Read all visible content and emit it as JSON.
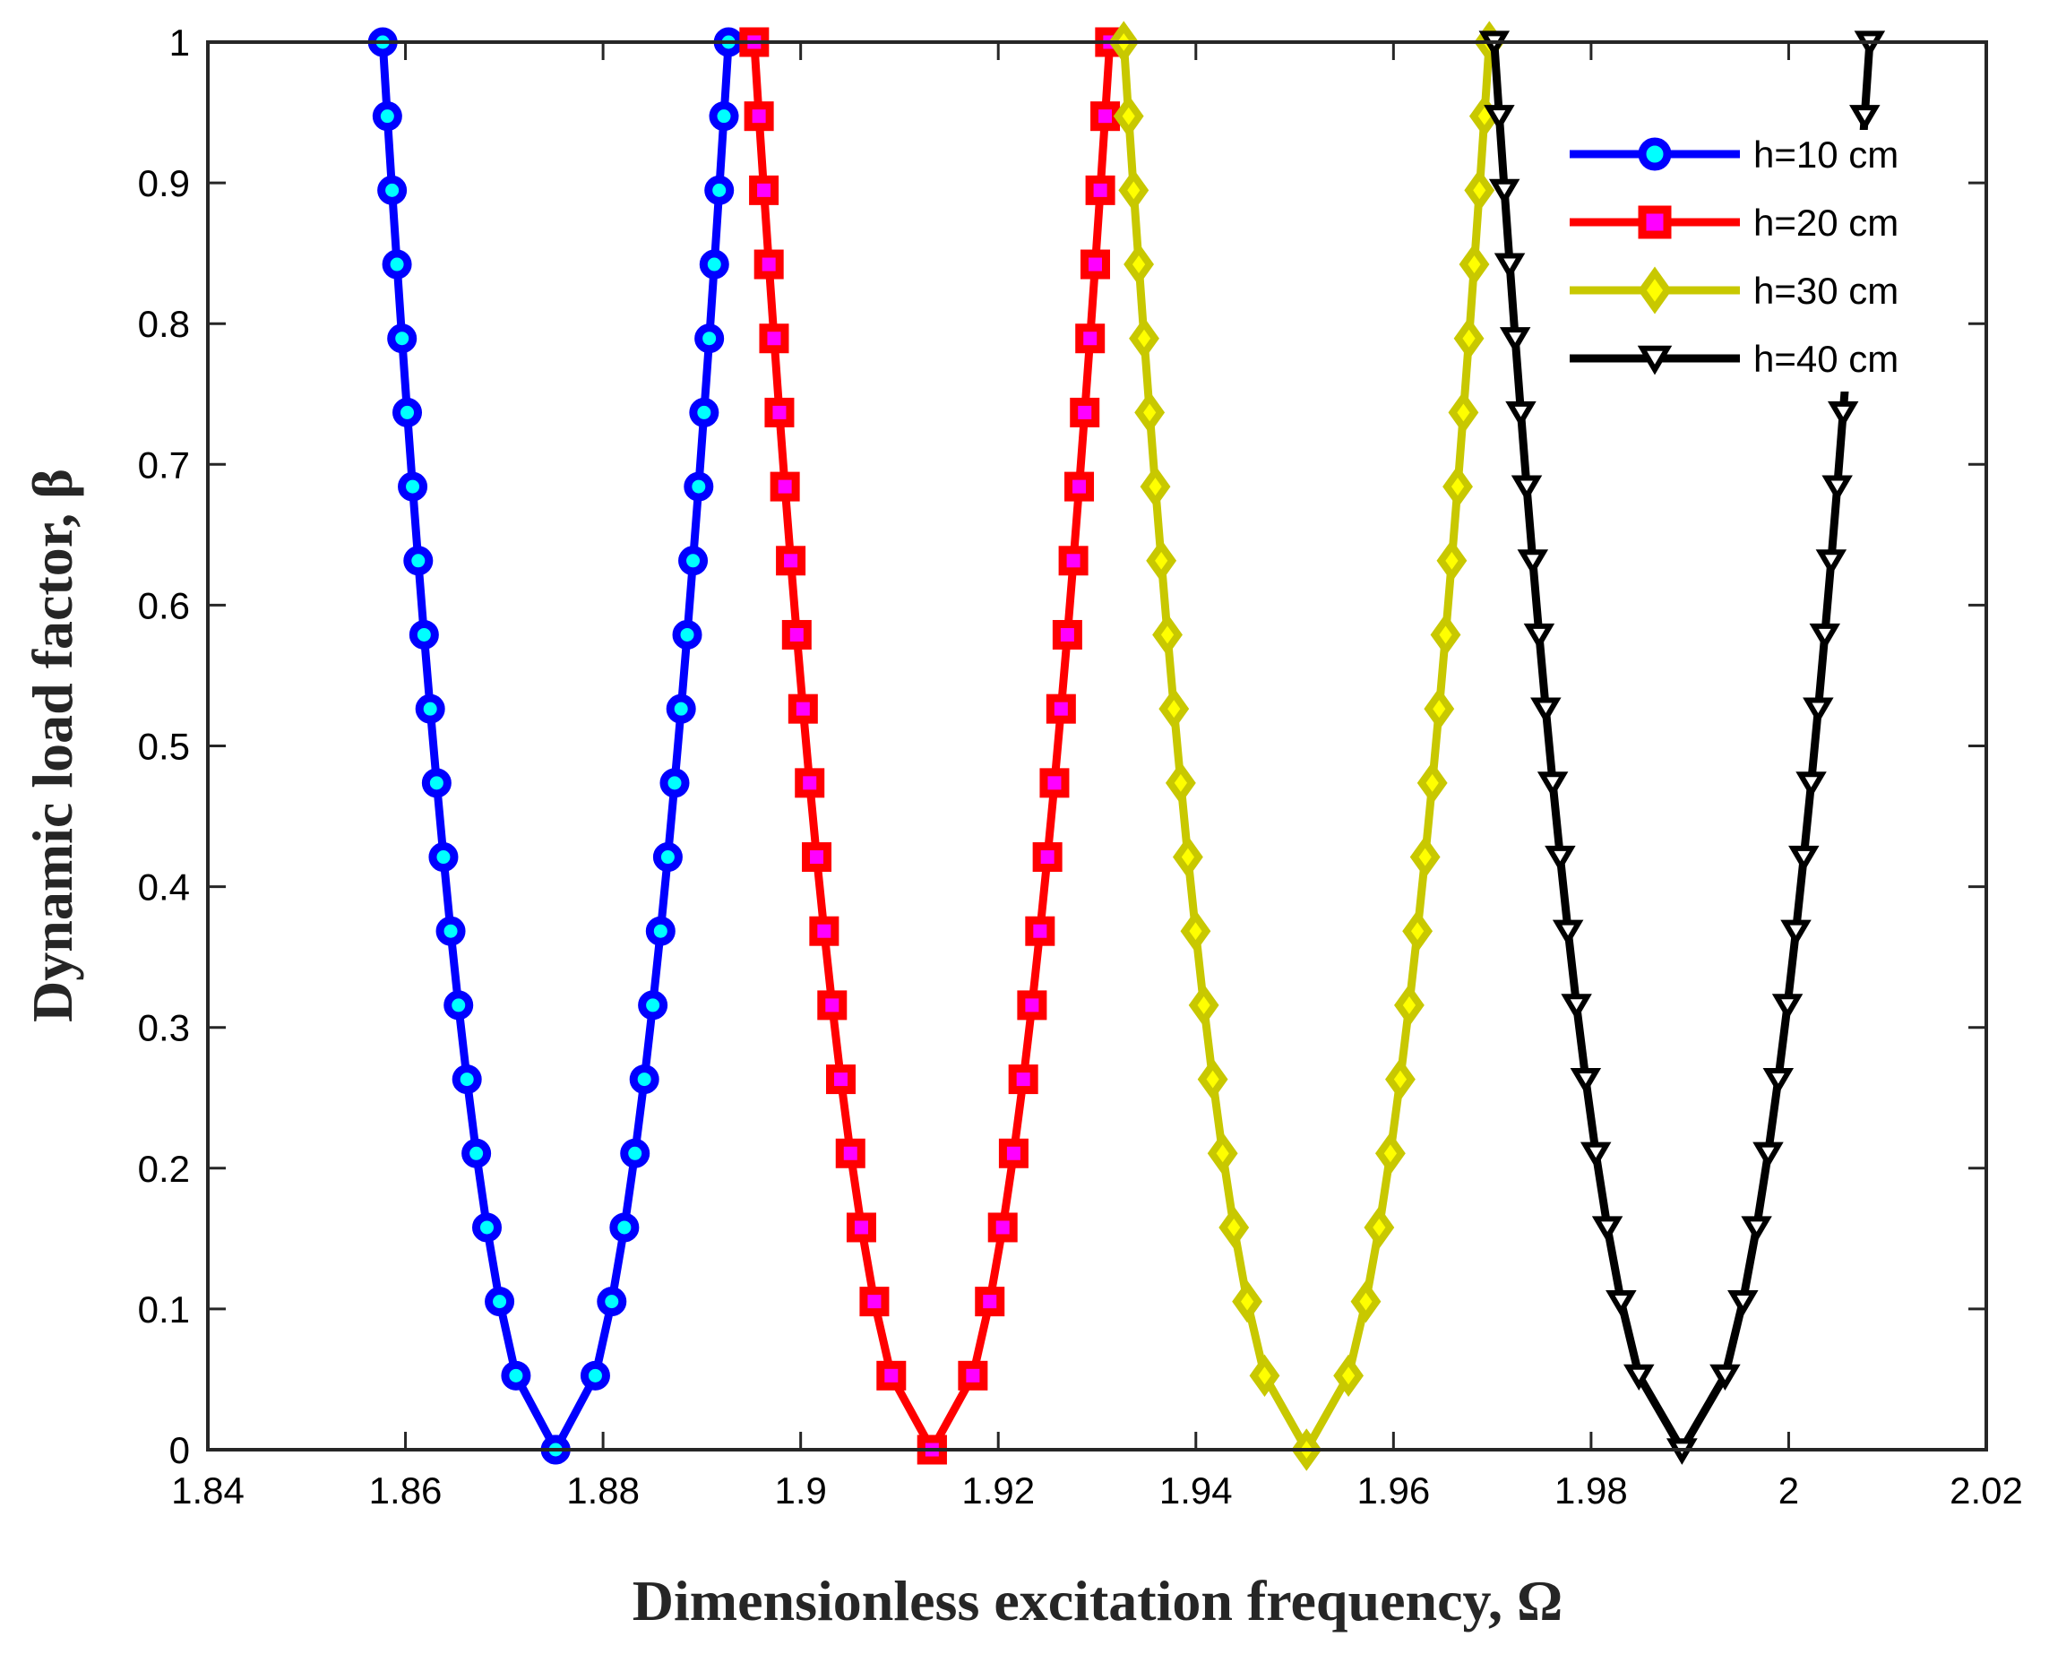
{
  "chart_data": {
    "type": "line",
    "title": "",
    "xlabel": "Dimensionless excitation frequency, Ω",
    "ylabel": "Dynamic load factor, β",
    "xlim": [
      1.84,
      2.02
    ],
    "ylim": [
      0,
      1
    ],
    "x_ticks": [
      "1.84",
      "1.86",
      "1.88",
      "1.9",
      "1.92",
      "1.94",
      "1.96",
      "1.98",
      "2",
      "2.02"
    ],
    "y_ticks": [
      "0",
      "0.1",
      "0.2",
      "0.3",
      "0.4",
      "0.5",
      "0.6",
      "0.7",
      "0.8",
      "0.9",
      "1"
    ],
    "legend_position": "top-right",
    "series": [
      {
        "name": "h=10 cm",
        "color": "#0000ff",
        "marker": "circle",
        "marker_fill": "#00ffff",
        "x_min": 1.8752,
        "x_left": 1.8577,
        "x_right": 1.8927
      },
      {
        "name": "h=20 cm",
        "color": "#ff0000",
        "marker": "square",
        "marker_fill": "#ff00ff",
        "x_min": 1.9133,
        "x_left": 1.8953,
        "x_right": 1.9313
      },
      {
        "name": "h=30 cm",
        "color": "#c8c800",
        "marker": "diamond",
        "marker_fill": "#ffff00",
        "x_min": 1.9512,
        "x_left": 1.9327,
        "x_right": 1.9697
      },
      {
        "name": "h=40 cm",
        "color": "#000000",
        "marker": "triangle-down",
        "marker_fill": "#ffffff",
        "x_min": 1.9892,
        "x_left": 1.9702,
        "x_right": 2.0082
      }
    ]
  }
}
